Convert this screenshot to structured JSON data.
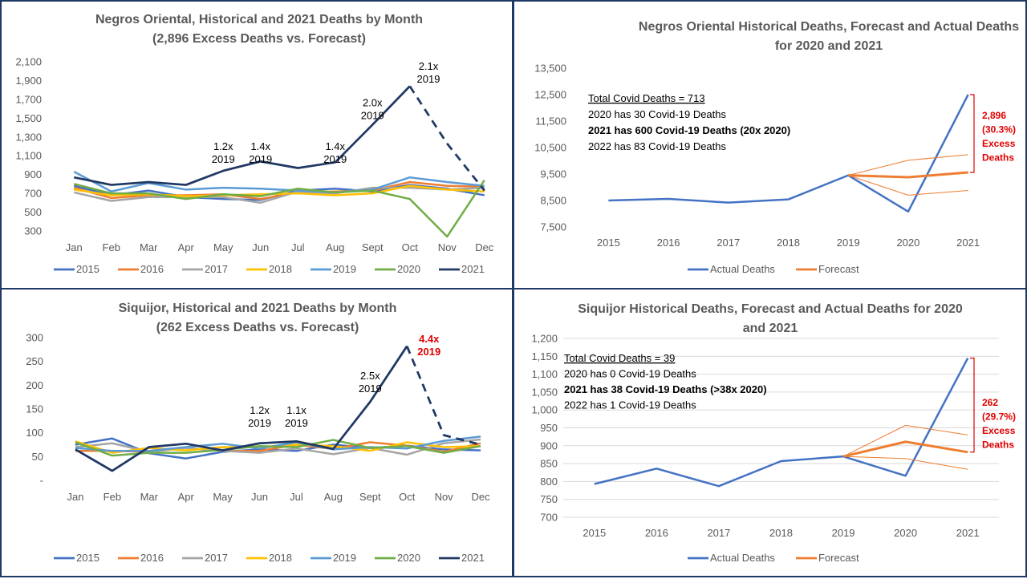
{
  "colors": {
    "2015": "#4472c4",
    "2016": "#ed7d31",
    "2017": "#a5a5a5",
    "2018": "#ffc000",
    "2019": "#5b9bd5",
    "2020": "#70ad47",
    "2021": "#203864",
    "actual": "#4472c4",
    "forecast": "#ed7d31",
    "red": "#e00000"
  },
  "chart_data": [
    {
      "type": "line",
      "title_lines": [
        "Negros Oriental, Historical and 2021 Deaths by Month",
        "(2,896 Excess Deaths vs. Forecast)"
      ],
      "categories": [
        "Jan",
        "Feb",
        "Mar",
        "Apr",
        "May",
        "Jun",
        "Jul",
        "Aug",
        "Sept",
        "Oct",
        "Nov",
        "Dec"
      ],
      "y_ticks": [
        "2,100",
        "1,900",
        "1,700",
        "1,500",
        "1,300",
        "1,100",
        "900",
        "700",
        "500",
        "300"
      ],
      "ylim": [
        300,
        2100
      ],
      "grid": false,
      "legend_position": "bottom",
      "series": [
        {
          "name": "2015",
          "color_key": "2015",
          "values": [
            780,
            680,
            730,
            660,
            640,
            630,
            730,
            750,
            720,
            790,
            750,
            680
          ]
        },
        {
          "name": "2016",
          "color_key": "2016",
          "values": [
            760,
            650,
            680,
            680,
            690,
            640,
            710,
            720,
            730,
            820,
            780,
            770
          ]
        },
        {
          "name": "2017",
          "color_key": "2017",
          "values": [
            710,
            620,
            660,
            660,
            660,
            600,
            720,
            700,
            760,
            760,
            740,
            760
          ]
        },
        {
          "name": "2018",
          "color_key": "2018",
          "values": [
            740,
            680,
            690,
            670,
            680,
            690,
            700,
            680,
            700,
            780,
            740,
            720
          ]
        },
        {
          "name": "2019",
          "color_key": "2019",
          "values": [
            930,
            720,
            810,
            740,
            760,
            750,
            730,
            710,
            740,
            870,
            820,
            780
          ]
        },
        {
          "name": "2020",
          "color_key": "2020",
          "values": [
            800,
            700,
            700,
            640,
            690,
            670,
            750,
            710,
            730,
            640,
            240,
            840
          ]
        },
        {
          "name": "2021",
          "color_key": "2021",
          "values": [
            870,
            790,
            820,
            790,
            940,
            1040,
            970,
            1030,
            1430,
            1840,
            1230,
            730
          ],
          "solid_until": 9
        }
      ],
      "annotations": [
        {
          "lines": [
            "1.2x",
            "2019"
          ],
          "at": 4,
          "y": 1160
        },
        {
          "lines": [
            "1.4x",
            "2019"
          ],
          "at": 5,
          "y": 1160
        },
        {
          "lines": [
            "1.4x",
            "2019"
          ],
          "at": 7,
          "y": 1160
        },
        {
          "lines": [
            "2.0x",
            "2019"
          ],
          "at": 8,
          "y": 1625
        },
        {
          "lines": [
            "2.1x",
            "2019"
          ],
          "at": 9.5,
          "y": 2015
        }
      ]
    },
    {
      "type": "line",
      "title_lines": [
        "Negros Oriental Historical Deaths, Forecast and Actual Deaths",
        "for 2020 and 2021"
      ],
      "categories": [
        "2015",
        "2016",
        "2017",
        "2018",
        "2019",
        "2020",
        "2021"
      ],
      "y_ticks": [
        "13,500",
        "12,500",
        "11,500",
        "10,500",
        "9,500",
        "8,500",
        "7,500"
      ],
      "ylim": [
        7500,
        13500
      ],
      "grid": false,
      "legend_position": "bottom",
      "series": [
        {
          "name": "Actual Deaths",
          "color_key": "actual",
          "values": [
            8500,
            8560,
            8420,
            8540,
            9450,
            8080,
            12500
          ]
        },
        {
          "name": "Forecast",
          "color_key": "forecast",
          "values": [
            null,
            null,
            null,
            null,
            9450,
            9380,
            9560
          ]
        },
        {
          "name": "",
          "color_key": "forecast",
          "values": [
            null,
            null,
            null,
            null,
            9450,
            10020,
            10230
          ],
          "thin": true
        },
        {
          "name": "",
          "color_key": "forecast",
          "values": [
            null,
            null,
            null,
            null,
            9450,
            8700,
            8880
          ],
          "thin": true
        }
      ],
      "notes": [
        {
          "text": "Total Covid Deaths = 713",
          "underline": true,
          "bold": false
        },
        {
          "text": "2020 has 30 Covid-19 Deaths",
          "underline": false,
          "bold": false
        },
        {
          "text": "2021 has 600 Covid-19 Deaths (20x 2020)",
          "underline": false,
          "bold": true
        },
        {
          "text": "2022 has 83 Covid-19 Deaths",
          "underline": false,
          "bold": false
        }
      ],
      "excess": {
        "lines": [
          "2,896",
          "(30.3%)",
          "Excess",
          "Deaths"
        ],
        "from": 9560,
        "to": 12500
      }
    },
    {
      "type": "line",
      "title_lines": [
        "Siquijor, Historical and 2021 Deaths by Month",
        "(262 Excess Deaths vs. Forecast)"
      ],
      "categories": [
        "Jan",
        "Feb",
        "Mar",
        "Apr",
        "May",
        "Jun",
        "Jul",
        "Aug",
        "Sept",
        "Oct",
        "Nov",
        "Dec"
      ],
      "y_ticks": [
        "300",
        "250",
        "200",
        "150",
        "100",
        "50",
        "-"
      ],
      "ylim": [
        0,
        300
      ],
      "grid": false,
      "legend_position": "bottom",
      "series": [
        {
          "name": "2015",
          "color_key": "2015",
          "values": [
            75,
            88,
            57,
            46,
            60,
            65,
            62,
            75,
            68,
            73,
            65,
            63
          ]
        },
        {
          "name": "2016",
          "color_key": "2016",
          "values": [
            62,
            62,
            60,
            68,
            62,
            62,
            75,
            66,
            80,
            73,
            60,
            78
          ]
        },
        {
          "name": "2017",
          "color_key": "2017",
          "values": [
            70,
            78,
            60,
            68,
            62,
            58,
            67,
            55,
            68,
            54,
            78,
            86
          ]
        },
        {
          "name": "2018",
          "color_key": "2018",
          "values": [
            82,
            58,
            68,
            63,
            70,
            70,
            75,
            72,
            62,
            80,
            70,
            72
          ]
        },
        {
          "name": "2019",
          "color_key": "2019",
          "values": [
            68,
            62,
            62,
            70,
            77,
            67,
            80,
            65,
            70,
            67,
            83,
            92
          ]
        },
        {
          "name": "2020",
          "color_key": "2020",
          "values": [
            80,
            52,
            58,
            58,
            64,
            72,
            70,
            85,
            68,
            72,
            58,
            72
          ]
        },
        {
          "name": "2021",
          "color_key": "2021",
          "values": [
            65,
            20,
            70,
            77,
            63,
            78,
            82,
            66,
            165,
            282,
            95,
            75
          ],
          "solid_until": 9
        }
      ],
      "annotations": [
        {
          "lines": [
            "1.2x",
            "2019"
          ],
          "at": 5,
          "y": 140
        },
        {
          "lines": [
            "1.1x",
            "2019"
          ],
          "at": 6,
          "y": 140
        },
        {
          "lines": [
            "2.5x",
            "2019"
          ],
          "at": 8,
          "y": 212
        },
        {
          "lines": [
            "4.4x",
            "2019"
          ],
          "at": 9.6,
          "y": 290,
          "red": true
        }
      ]
    },
    {
      "type": "line",
      "title_lines": [
        "Siquijor Historical Deaths, Forecast and Actual Deaths for 2020",
        "and 2021"
      ],
      "categories": [
        "2015",
        "2016",
        "2017",
        "2018",
        "2019",
        "2020",
        "2021"
      ],
      "y_ticks": [
        "1,200",
        "1,150",
        "1,100",
        "1,050",
        "1,000",
        "950",
        "900",
        "850",
        "800",
        "750",
        "700"
      ],
      "ylim": [
        700,
        1200
      ],
      "grid": true,
      "legend_position": "bottom",
      "series": [
        {
          "name": "Actual Deaths",
          "color_key": "actual",
          "values": [
            793,
            836,
            787,
            857,
            870,
            816,
            1145
          ]
        },
        {
          "name": "Forecast",
          "color_key": "forecast",
          "values": [
            null,
            null,
            null,
            null,
            870,
            911,
            882
          ]
        },
        {
          "name": "",
          "color_key": "forecast",
          "values": [
            null,
            null,
            null,
            null,
            870,
            957,
            930
          ],
          "thin": true
        },
        {
          "name": "",
          "color_key": "forecast",
          "values": [
            null,
            null,
            null,
            null,
            870,
            864,
            834
          ],
          "thin": true
        }
      ],
      "notes": [
        {
          "text": "Total Covid Deaths = 39",
          "underline": true,
          "bold": false
        },
        {
          "text": "2020 has 0 Covid-19 Deaths",
          "underline": false,
          "bold": false
        },
        {
          "text": "2021 has 38 Covid-19 Deaths (>38x 2020)",
          "underline": false,
          "bold": true
        },
        {
          "text": "2022 has 1 Covid-19 Deaths",
          "underline": false,
          "bold": false
        }
      ],
      "excess": {
        "lines": [
          "262",
          "(29.7%)",
          "Excess",
          "Deaths"
        ],
        "from": 882,
        "to": 1145
      }
    }
  ]
}
